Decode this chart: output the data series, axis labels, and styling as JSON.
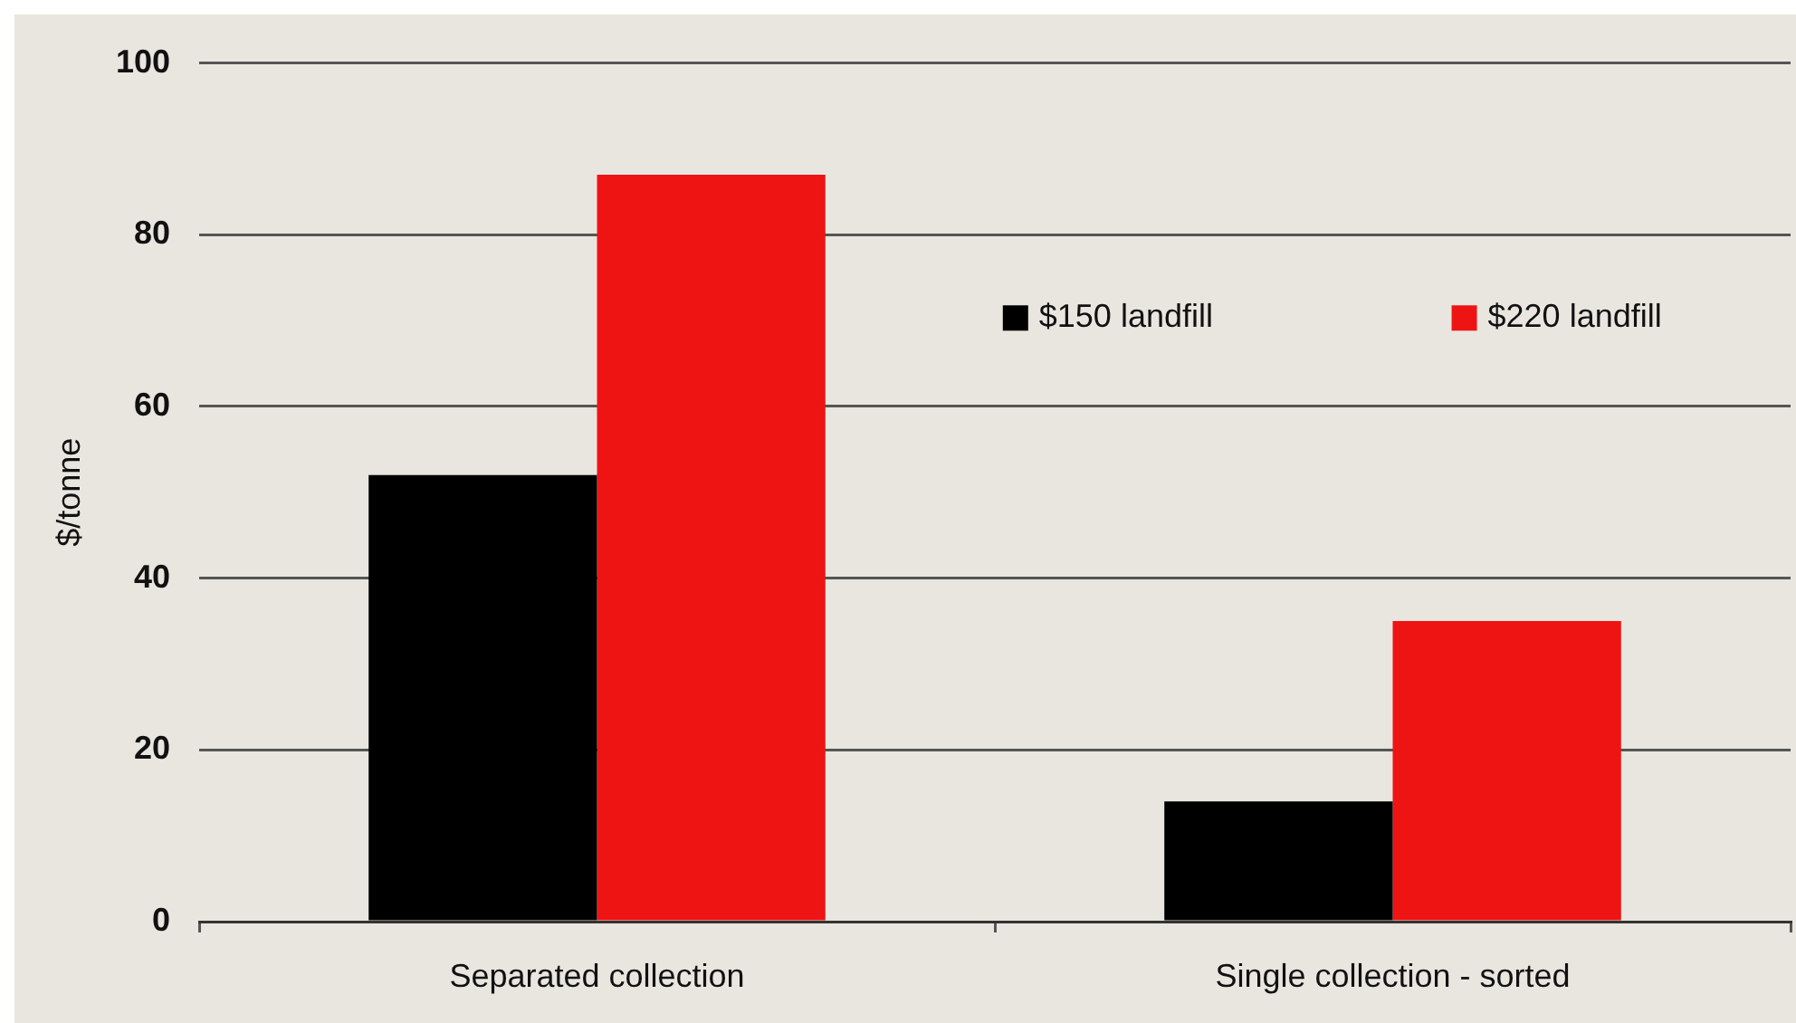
{
  "chart_data": {
    "type": "bar",
    "ylabel": "$/tonne",
    "categories": [
      "Separated collection",
      "Single collection - sorted"
    ],
    "series": [
      {
        "name": "$150 landfill",
        "color": "#000000",
        "values": [
          52,
          14
        ]
      },
      {
        "name": "$220 landfill",
        "color": "#ee1414",
        "values": [
          87,
          35
        ]
      }
    ],
    "ylim": [
      0,
      100
    ],
    "yticks": [
      0,
      20,
      40,
      60,
      80,
      100
    ],
    "grid": "y",
    "legend": "top right"
  }
}
